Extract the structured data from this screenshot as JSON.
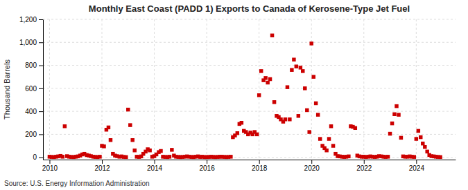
{
  "chart_data": {
    "type": "scatter",
    "title": "Monthly East Coast (PADD 1) Exports to Canada of Kerosene-Type Jet Fuel",
    "ylabel": "Thousand Barrels",
    "annotations": [
      "Source: U.S. Energy Information Administration"
    ],
    "color": "#cc0000",
    "marker": "square",
    "grid": true,
    "xlim": [
      2009.75,
      2025.5
    ],
    "xticks": [
      2010,
      2012,
      2014,
      2016,
      2018,
      2020,
      2022,
      2024
    ],
    "ylim": [
      -20,
      1200
    ],
    "yticks": [
      0,
      200,
      400,
      600,
      800,
      {
        "value": 1000,
        "label": "1,000"
      },
      {
        "value": 1200,
        "label": "1,200"
      }
    ],
    "x": [
      2010.0,
      2010.08,
      2010.17,
      2010.25,
      2010.33,
      2010.42,
      2010.5,
      2010.58,
      2010.67,
      2010.75,
      2010.83,
      2010.92,
      2011.0,
      2011.08,
      2011.17,
      2011.25,
      2011.33,
      2011.42,
      2011.5,
      2011.58,
      2011.67,
      2011.75,
      2011.83,
      2011.92,
      2012.0,
      2012.08,
      2012.17,
      2012.25,
      2012.33,
      2012.42,
      2012.5,
      2012.58,
      2012.67,
      2012.75,
      2012.83,
      2012.92,
      2013.0,
      2013.08,
      2013.17,
      2013.25,
      2013.33,
      2013.42,
      2013.5,
      2013.58,
      2013.67,
      2013.75,
      2013.83,
      2013.92,
      2014.0,
      2014.08,
      2014.17,
      2014.25,
      2014.33,
      2014.42,
      2014.5,
      2014.58,
      2014.67,
      2014.75,
      2014.83,
      2014.92,
      2015.0,
      2015.08,
      2015.17,
      2015.25,
      2015.33,
      2015.42,
      2015.5,
      2015.58,
      2015.67,
      2015.75,
      2015.83,
      2015.92,
      2016.0,
      2016.08,
      2016.17,
      2016.25,
      2016.33,
      2016.42,
      2016.5,
      2016.58,
      2016.67,
      2016.75,
      2016.83,
      2016.92,
      2017.0,
      2017.08,
      2017.17,
      2017.25,
      2017.33,
      2017.42,
      2017.5,
      2017.58,
      2017.67,
      2017.75,
      2017.83,
      2017.92,
      2018.0,
      2018.08,
      2018.17,
      2018.25,
      2018.33,
      2018.42,
      2018.5,
      2018.58,
      2018.67,
      2018.75,
      2018.83,
      2018.92,
      2019.0,
      2019.08,
      2019.17,
      2019.25,
      2019.33,
      2019.42,
      2019.5,
      2019.58,
      2019.67,
      2019.75,
      2019.83,
      2019.92,
      2020.0,
      2020.08,
      2020.17,
      2020.25,
      2020.33,
      2020.42,
      2020.5,
      2020.58,
      2020.67,
      2020.75,
      2020.83,
      2020.92,
      2021.0,
      2021.08,
      2021.17,
      2021.25,
      2021.33,
      2021.42,
      2021.5,
      2021.58,
      2021.67,
      2021.75,
      2021.83,
      2021.92,
      2022.0,
      2022.08,
      2022.17,
      2022.25,
      2022.33,
      2022.42,
      2022.5,
      2022.58,
      2022.67,
      2022.75,
      2022.83,
      2022.92,
      2023.0,
      2023.08,
      2023.17,
      2023.25,
      2023.33,
      2023.42,
      2023.5,
      2023.58,
      2023.67,
      2023.75,
      2023.83,
      2023.92,
      2024.0,
      2024.08,
      2024.17,
      2024.25,
      2024.33,
      2024.42,
      2024.5,
      2024.58,
      2024.67,
      2024.75,
      2024.83,
      2024.92
    ],
    "values": [
      5,
      3,
      2,
      5,
      8,
      12,
      5,
      270,
      10,
      5,
      3,
      2,
      5,
      8,
      15,
      25,
      30,
      20,
      15,
      10,
      5,
      3,
      2,
      5,
      100,
      95,
      240,
      260,
      150,
      30,
      15,
      10,
      5,
      8,
      3,
      2,
      415,
      280,
      150,
      60,
      5,
      3,
      8,
      30,
      50,
      70,
      60,
      5,
      10,
      25,
      45,
      55,
      5,
      3,
      2,
      5,
      65,
      15,
      5,
      3,
      2,
      3,
      5,
      8,
      5,
      3,
      2,
      5,
      8,
      3,
      5,
      2,
      2,
      3,
      5,
      3,
      2,
      3,
      5,
      5,
      3,
      2,
      3,
      5,
      175,
      190,
      210,
      290,
      300,
      230,
      220,
      200,
      215,
      200,
      220,
      200,
      540,
      750,
      670,
      690,
      650,
      680,
      1060,
      480,
      360,
      350,
      330,
      310,
      330,
      610,
      330,
      760,
      850,
      790,
      360,
      780,
      750,
      600,
      410,
      220,
      990,
      700,
      470,
      370,
      160,
      100,
      80,
      60,
      160,
      270,
      100,
      30,
      10,
      8,
      5,
      3,
      5,
      8,
      270,
      265,
      255,
      15,
      8,
      5,
      5,
      3,
      5,
      8,
      5,
      3,
      5,
      10,
      8,
      5,
      3,
      5,
      205,
      295,
      375,
      445,
      370,
      170,
      8,
      5,
      5,
      8,
      5,
      3,
      160,
      230,
      175,
      120,
      90,
      50,
      20,
      10,
      8,
      5,
      3,
      2
    ]
  }
}
